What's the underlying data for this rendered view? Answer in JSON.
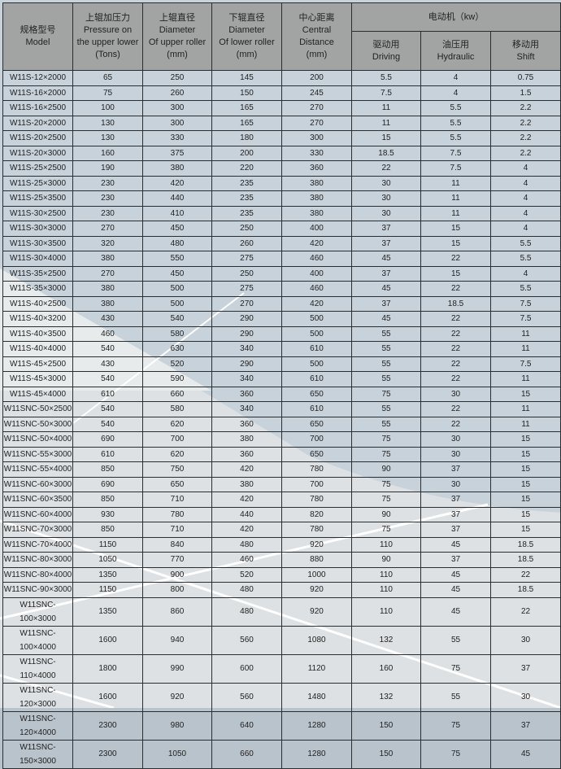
{
  "header": {
    "model": {
      "zh": "规格型号",
      "en": "Model"
    },
    "pressure": {
      "zh": "上辊加压力",
      "en1": "Pressure on",
      "en2": "the upper lower",
      "unit": "(Tons)"
    },
    "upper_dia": {
      "zh": "上辊直径",
      "en1": "Diameter",
      "en2": "Of upper roller",
      "unit": "(mm)"
    },
    "lower_dia": {
      "zh": "下辊直径",
      "en1": "Diameter",
      "en2": "Of lower roller",
      "unit": "(mm)"
    },
    "center": {
      "zh": "中心距离",
      "en1": "Central",
      "en2": "Distance",
      "unit": "(mm)"
    },
    "motor": "电动机（kw）",
    "driving": {
      "zh": "驱动用",
      "en": "Driving"
    },
    "hydraulic": {
      "zh": "油压用",
      "en": "Hydraulic"
    },
    "shift": {
      "zh": "移动用",
      "en": "Shift"
    }
  },
  "rows": [
    [
      "W11S-12×2000",
      "65",
      "250",
      "145",
      "200",
      "5.5",
      "4",
      "0.75"
    ],
    [
      "W11S-16×2000",
      "75",
      "260",
      "150",
      "245",
      "7.5",
      "4",
      "1.5"
    ],
    [
      "W11S-16×2500",
      "100",
      "300",
      "165",
      "270",
      "11",
      "5.5",
      "2.2"
    ],
    [
      "W11S-20×2000",
      "130",
      "300",
      "165",
      "270",
      "11",
      "5.5",
      "2.2"
    ],
    [
      "W11S-20×2500",
      "130",
      "330",
      "180",
      "300",
      "15",
      "5.5",
      "2.2"
    ],
    [
      "W11S-20×3000",
      "160",
      "375",
      "200",
      "330",
      "18.5",
      "7.5",
      "2.2"
    ],
    [
      "W11S-25×2500",
      "190",
      "380",
      "220",
      "360",
      "22",
      "7.5",
      "4"
    ],
    [
      "W11S-25×3000",
      "230",
      "420",
      "235",
      "380",
      "30",
      "11",
      "4"
    ],
    [
      "W11S-25×3500",
      "230",
      "440",
      "235",
      "380",
      "30",
      "11",
      "4"
    ],
    [
      "W11S-30×2500",
      "230",
      "410",
      "235",
      "380",
      "30",
      "11",
      "4"
    ],
    [
      "W11S-30×3000",
      "270",
      "450",
      "250",
      "400",
      "37",
      "15",
      "4"
    ],
    [
      "W11S-30×3500",
      "320",
      "480",
      "260",
      "420",
      "37",
      "15",
      "5.5"
    ],
    [
      "W11S-30×4000",
      "380",
      "550",
      "275",
      "460",
      "45",
      "22",
      "5.5"
    ],
    [
      "W11S-35×2500",
      "270",
      "450",
      "250",
      "400",
      "37",
      "15",
      "4"
    ],
    [
      "W11S-35×3000",
      "380",
      "500",
      "275",
      "460",
      "45",
      "22",
      "5.5"
    ],
    [
      "W11S-40×2500",
      "380",
      "500",
      "270",
      "420",
      "37",
      "18.5",
      "7.5"
    ],
    [
      "W11S-40×3200",
      "430",
      "540",
      "290",
      "500",
      "45",
      "22",
      "7.5"
    ],
    [
      "W11S-40×3500",
      "460",
      "580",
      "290",
      "500",
      "55",
      "22",
      "11"
    ],
    [
      "W11S-40×4000",
      "540",
      "630",
      "340",
      "610",
      "55",
      "22",
      "11"
    ],
    [
      "W11S-45×2500",
      "430",
      "520",
      "290",
      "500",
      "55",
      "22",
      "7.5"
    ],
    [
      "W11S-45×3000",
      "540",
      "590",
      "340",
      "610",
      "55",
      "22",
      "11"
    ],
    [
      "W11S-45×4000",
      "610",
      "660",
      "360",
      "650",
      "75",
      "30",
      "15"
    ],
    [
      "W11SNC-50×2500",
      "540",
      "580",
      "340",
      "610",
      "55",
      "22",
      "11"
    ],
    [
      "W11SNC-50×3000",
      "540",
      "620",
      "360",
      "650",
      "55",
      "22",
      "11"
    ],
    [
      "W11SNC-50×4000",
      "690",
      "700",
      "380",
      "700",
      "75",
      "30",
      "15"
    ],
    [
      "W11SNC-55×3000",
      "610",
      "620",
      "360",
      "650",
      "75",
      "30",
      "15"
    ],
    [
      "W11SNC-55×4000",
      "850",
      "750",
      "420",
      "780",
      "90",
      "37",
      "15"
    ],
    [
      "W11SNC-60×3000",
      "690",
      "650",
      "380",
      "700",
      "75",
      "30",
      "15"
    ],
    [
      "W11SNC-60×3500",
      "850",
      "710",
      "420",
      "780",
      "75",
      "37",
      "15"
    ],
    [
      "W11SNC-60×4000",
      "930",
      "780",
      "440",
      "820",
      "90",
      "37",
      "15"
    ],
    [
      "W11SNC-70×3000",
      "850",
      "710",
      "420",
      "780",
      "75",
      "37",
      "15"
    ],
    [
      "W11SNC-70×4000",
      "1150",
      "840",
      "480",
      "920",
      "110",
      "45",
      "18.5"
    ],
    [
      "W11SNC-80×3000",
      "1050",
      "770",
      "460",
      "880",
      "90",
      "37",
      "18.5"
    ],
    [
      "W11SNC-80×4000",
      "1350",
      "900",
      "520",
      "1000",
      "110",
      "45",
      "22"
    ],
    [
      "W11SNC-90×3000",
      "1150",
      "800",
      "480",
      "920",
      "110",
      "45",
      "18.5"
    ],
    [
      "W11SNC-100×3000",
      "1350",
      "860",
      "480",
      "920",
      "110",
      "45",
      "22"
    ],
    [
      "W11SNC-100×4000",
      "1600",
      "940",
      "560",
      "1080",
      "132",
      "55",
      "30"
    ],
    [
      "W11SNC-110×4000",
      "1800",
      "990",
      "600",
      "1120",
      "160",
      "75",
      "37"
    ],
    [
      "W11SNC-120×3000",
      "1600",
      "920",
      "560",
      "1480",
      "132",
      "55",
      "30"
    ],
    [
      "W11SNC-120×4000",
      "2300",
      "980",
      "640",
      "1280",
      "150",
      "75",
      "37"
    ],
    [
      "W11SNC-150×3000",
      "2300",
      "1050",
      "660",
      "1280",
      "150",
      "75",
      "45"
    ]
  ],
  "colors": {
    "header_bg": "#a0a0a0",
    "body_bg": "#c8d2da",
    "light_bg": "#dfe3e4",
    "border": "#2a2e31"
  }
}
